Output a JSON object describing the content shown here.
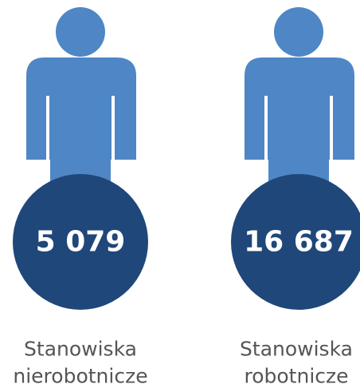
{
  "items": [
    {
      "number": "5 079",
      "label": [
        "Stanowiska",
        "nierobotnicze"
      ]
    },
    {
      "number": "16 687",
      "label": [
        "Stanowiska",
        "robotnicze"
      ]
    }
  ]
}
